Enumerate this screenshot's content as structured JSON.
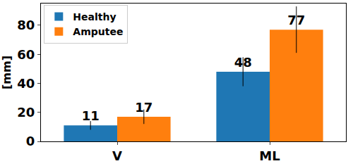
{
  "chart_data": {
    "type": "bar",
    "y_label": "[mm]",
    "categories": [
      "V",
      "ML"
    ],
    "series": [
      {
        "name": "Healthy",
        "color": "#1f77b4",
        "values": [
          11,
          48
        ],
        "error": [
          3,
          10
        ]
      },
      {
        "name": "Amputee",
        "color": "#ff7f0e",
        "values": [
          17,
          77
        ],
        "error": [
          5,
          16
        ]
      }
    ],
    "ylim": [
      0,
      95
    ],
    "yticks": [
      0,
      20,
      40,
      60,
      80
    ],
    "grid": false,
    "legend": "upper left",
    "data_labels": true
  }
}
